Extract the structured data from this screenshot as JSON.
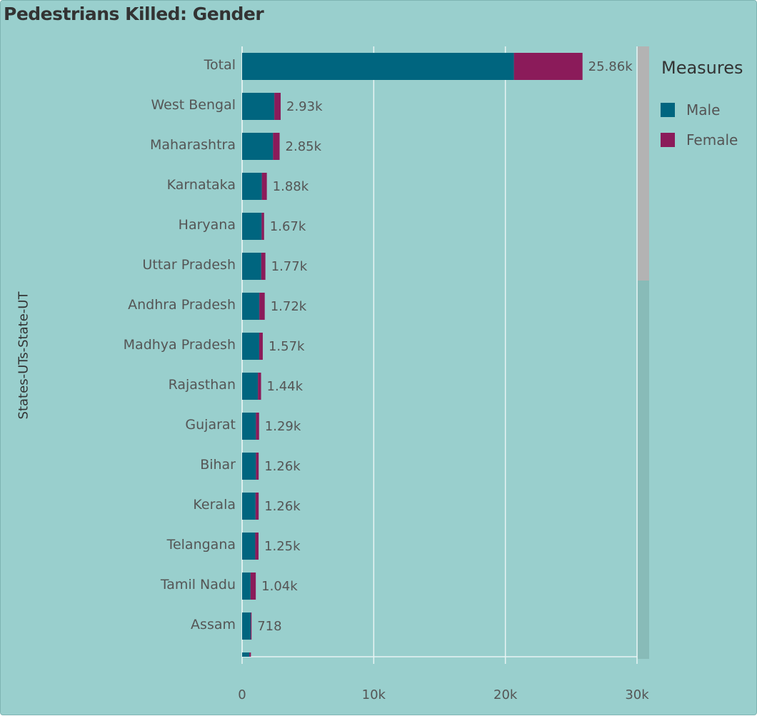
{
  "title": "Pedestrians Killed: Gender",
  "colors": {
    "male": "#00657f",
    "female": "#8b1b5a",
    "background": "#99cfcd"
  },
  "legend": {
    "title": "Measures",
    "items": [
      {
        "label": "Male",
        "color": "#00657f"
      },
      {
        "label": "Female",
        "color": "#8b1b5a"
      }
    ]
  },
  "chart_data": {
    "type": "bar",
    "orientation": "horizontal",
    "stacked": true,
    "title": "Pedestrians Killed: Gender",
    "ylabel": "States-UTs-State-UT",
    "xlabel": "",
    "xlim": [
      0,
      30000
    ],
    "xticks": [
      "0",
      "10k",
      "20k",
      "30k"
    ],
    "grid": true,
    "legend_position": "right",
    "categories": [
      "Total",
      "West Bengal",
      "Maharashtra",
      "Karnataka",
      "Haryana",
      "Uttar Pradesh",
      "Andhra Pradesh",
      "Madhya Pradesh",
      "Rajasthan",
      "Gujarat",
      "Bihar",
      "Kerala",
      "Telangana",
      "Tamil Nadu",
      "Assam",
      ""
    ],
    "series": [
      {
        "name": "Male",
        "values": [
          20650,
          2450,
          2350,
          1500,
          1480,
          1450,
          1310,
          1300,
          1200,
          1050,
          1050,
          1020,
          1000,
          640,
          650,
          550
        ]
      },
      {
        "name": "Female",
        "values": [
          5210,
          480,
          500,
          380,
          190,
          320,
          410,
          270,
          240,
          240,
          210,
          240,
          250,
          400,
          68,
          120
        ]
      }
    ],
    "totals": [
      25860,
      2930,
      2850,
      1880,
      1670,
      1770,
      1720,
      1570,
      1440,
      1290,
      1260,
      1260,
      1250,
      1040,
      718,
      670
    ],
    "data_labels": [
      "25.86k",
      "2.93k",
      "2.85k",
      "1.88k",
      "1.67k",
      "1.77k",
      "1.72k",
      "1.57k",
      "1.44k",
      "1.29k",
      "1.26k",
      "1.26k",
      "1.25k",
      "1.04k",
      "718",
      ""
    ]
  }
}
